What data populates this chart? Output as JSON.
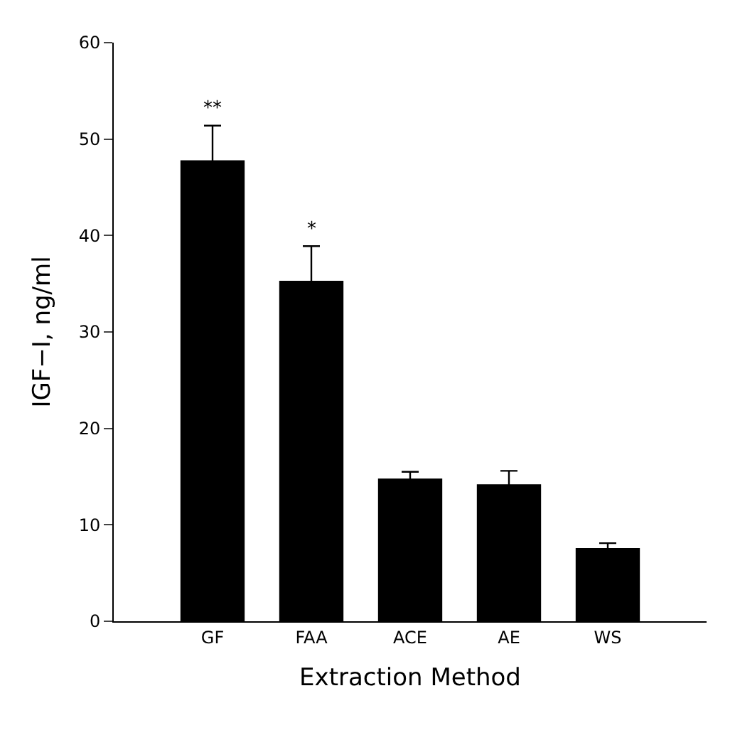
{
  "chart_data": {
    "type": "bar",
    "xlabel": "Extraction Method",
    "ylabel": "IGF−I, ng/ml",
    "categories": [
      "GF",
      "FAA",
      "ACE",
      "AE",
      "WS"
    ],
    "values": [
      47.8,
      35.3,
      14.8,
      14.2,
      7.6
    ],
    "errors": [
      3.6,
      3.6,
      0.7,
      1.4,
      0.5
    ],
    "color": "#000000",
    "ylim": [
      0,
      60
    ],
    "yticks": [
      0,
      10,
      20,
      30,
      40,
      50,
      60
    ],
    "annotations": [
      "**",
      "*"
    ]
  }
}
